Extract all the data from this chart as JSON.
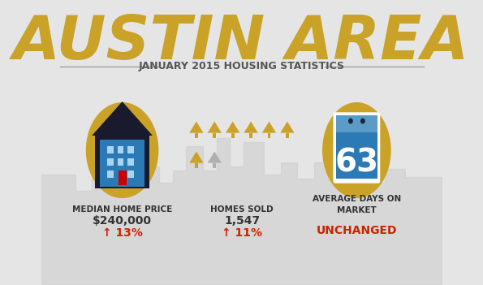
{
  "background_color": "#e5e5e5",
  "title": "AUSTIN AREA",
  "subtitle": "JANUARY 2015 HOUSING STATISTICS",
  "title_color": "#c9a227",
  "subtitle_color": "#555555",
  "stat1_label": "MEDIAN HOME PRICE",
  "stat1_value": "$240,000",
  "stat1_change": "↑ 13%",
  "stat1_change_color": "#cc2200",
  "stat2_label": "HOMES SOLD",
  "stat2_value": "1,547",
  "stat2_change": "↑ 11%",
  "stat2_change_color": "#cc2200",
  "stat3_label": "AVERAGE DAYS ON\nMARKET",
  "stat3_value": "63",
  "stat3_change": "UNCHANGED",
  "stat3_change_color": "#cc2200",
  "gold_color": "#c9a227",
  "dark_color": "#1a1a2e",
  "blue_color": "#2b7ab5",
  "text_dark": "#333333",
  "skyline_color": "#cccccc",
  "line_color": "#999999"
}
